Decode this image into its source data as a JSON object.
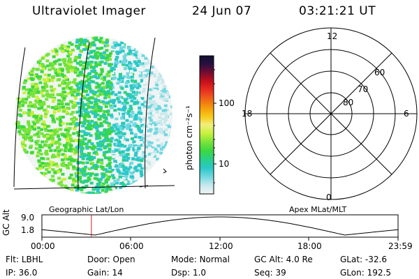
{
  "header": {
    "instrument": "Ultraviolet Imager",
    "date": "24 Jun 07",
    "time": "03:21:21 UT"
  },
  "colorbar": {
    "unit_label": "photon cm⁻²s⁻¹",
    "ticks": [
      "100",
      "10"
    ],
    "stops": [
      "#101030",
      "#2a1040",
      "#7a0c30",
      "#c8101c",
      "#e83020",
      "#f06418",
      "#f59a0a",
      "#f8c818",
      "#f0f07c",
      "#c8f03c",
      "#78e43a",
      "#3cd840",
      "#28d088",
      "#2ac8c8",
      "#70d8e0",
      "#c8e8ec",
      "#f0f4f4"
    ]
  },
  "left_panel": {
    "caption": "Geographic Lat/Lon"
  },
  "right_panel": {
    "caption": "Apex MLat/MLT",
    "mlt_labels": [
      "12",
      "18",
      "6",
      "0"
    ],
    "lat_labels": [
      "60",
      "70",
      "80"
    ]
  },
  "timeline": {
    "ylabel": "GC Alt",
    "y_ticks": [
      "9.0",
      "1.8"
    ],
    "x_ticks": [
      "00:00",
      "06:00",
      "12:00",
      "18:00",
      "23:59"
    ],
    "marker_fraction": 0.139
  },
  "info": {
    "row1": [
      {
        "key": "Flt:",
        "value": "LBHL"
      },
      {
        "key": "Door:",
        "value": "Open"
      },
      {
        "key": "Mode:",
        "value": "Normal"
      },
      {
        "key": "GC Alt:",
        "value": "4.0 Re"
      },
      {
        "key": "GLat:",
        "value": "-32.6"
      }
    ],
    "row2": [
      {
        "key": "IP:",
        "value": "36.0"
      },
      {
        "key": "Gain:",
        "value": "14"
      },
      {
        "key": "Dsp:",
        "value": "1.0"
      },
      {
        "key": "Seq:",
        "value": "39"
      },
      {
        "key": "GLon:",
        "value": "192.5"
      }
    ]
  }
}
